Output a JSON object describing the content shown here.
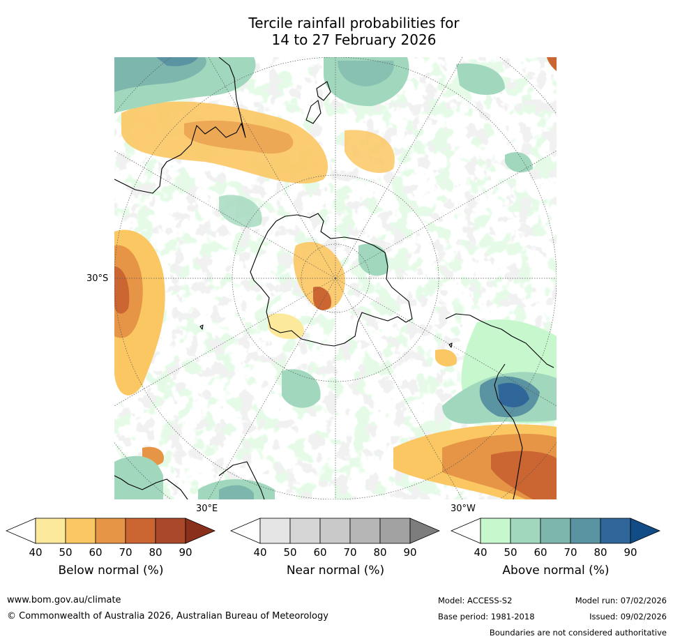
{
  "title": {
    "line1": "Tercile rainfall probabilities for",
    "line2": "14 to 27 February 2026"
  },
  "map": {
    "projection": "south-polar-stereographic",
    "lat_label": "30°S",
    "lon_labels": [
      "30°E",
      "30°W"
    ],
    "continents": [
      "Antarctica",
      "Australia",
      "South America",
      "Africa",
      "New Zealand"
    ]
  },
  "colorbars": [
    {
      "name": "below",
      "label": "Below normal (%)",
      "ticks": [
        "40",
        "50",
        "60",
        "70",
        "80",
        "90"
      ],
      "colors": [
        "#ffffff",
        "#fde99c",
        "#fbc763",
        "#e59545",
        "#cb6532",
        "#a9492a",
        "#8a2f1c"
      ]
    },
    {
      "name": "near",
      "label": "Near normal (%)",
      "ticks": [
        "40",
        "50",
        "60",
        "70",
        "80",
        "90"
      ],
      "colors": [
        "#ffffff",
        "#e5e5e5",
        "#d6d6d6",
        "#c9c9c9",
        "#b6b6b6",
        "#a2a2a2",
        "#7d7d7d"
      ]
    },
    {
      "name": "above",
      "label": "Above normal (%)",
      "ticks": [
        "40",
        "50",
        "60",
        "70",
        "80",
        "90"
      ],
      "colors": [
        "#ffffff",
        "#c6f7cd",
        "#a1d8bd",
        "#7db6ad",
        "#5a93a1",
        "#30679b",
        "#124c86"
      ]
    }
  ],
  "footer": {
    "url": "www.bom.gov.au/climate",
    "copyright": "© Commonwealth of Australia 2026, Australian Bureau of Meteorology",
    "model": "Model: ACCESS-S2",
    "base_period": "Base period: 1981-2018",
    "model_run": "Model run: 07/02/2026",
    "issued": "Issued: 09/02/2026",
    "disclaimer": "Boundaries are not considered authoritative"
  }
}
